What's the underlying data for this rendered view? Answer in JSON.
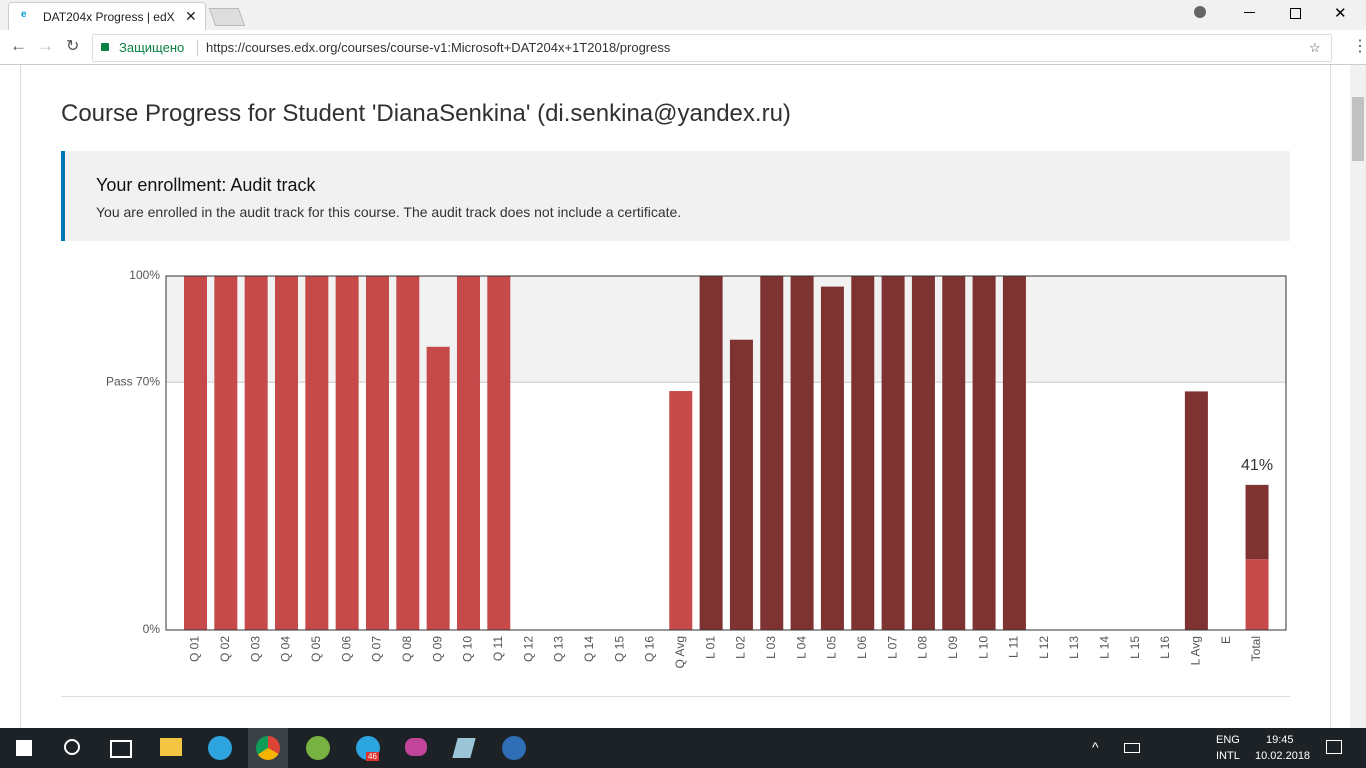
{
  "browser": {
    "tab_title": "DAT204x Progress | edX",
    "secure_label": "Защищено",
    "url": "https://courses.edx.org/courses/course-v1:Microsoft+DAT204x+1T2018/progress"
  },
  "page": {
    "title": "Course Progress for Student 'DianaSenkina' (di.senkina@yandex.ru)",
    "enrollment_title": "Your enrollment: Audit track",
    "enrollment_text": "You are enrolled in the audit track for this course. The audit track does not include a certificate."
  },
  "chart_data": {
    "type": "bar",
    "categories": [
      "Q 01",
      "Q 02",
      "Q 03",
      "Q 04",
      "Q 05",
      "Q 06",
      "Q 07",
      "Q 08",
      "Q 09",
      "Q 10",
      "Q 11",
      "Q 12",
      "Q 13",
      "Q 14",
      "Q 15",
      "Q 16",
      "Q Avg",
      "L 01",
      "L 02",
      "L 03",
      "L 04",
      "L 05",
      "L 06",
      "L 07",
      "L 08",
      "L 09",
      "L 10",
      "L 11",
      "L 12",
      "L 13",
      "L 14",
      "L 15",
      "L 16",
      "L Avg",
      "E",
      "Total"
    ],
    "series": [
      {
        "color": "#c64a4a",
        "values": [
          100,
          100,
          100,
          100,
          100,
          100,
          100,
          100,
          80,
          100,
          100,
          0,
          0,
          0,
          0,
          0,
          67.5,
          null,
          null,
          null,
          null,
          null,
          null,
          null,
          null,
          null,
          null,
          null,
          null,
          null,
          null,
          null,
          null,
          null,
          null,
          20
        ]
      },
      {
        "color": "#7f3232",
        "values": [
          null,
          null,
          null,
          null,
          null,
          null,
          null,
          null,
          null,
          null,
          null,
          null,
          null,
          null,
          null,
          null,
          null,
          100,
          82,
          100,
          100,
          97,
          100,
          100,
          100,
          100,
          100,
          100,
          0,
          0,
          0,
          0,
          0,
          67.4,
          null,
          21
        ]
      }
    ],
    "total": {
      "value": 41,
      "label": "41%"
    },
    "ylim": [
      0,
      100
    ],
    "yticks": [
      {
        "value": 0,
        "label": "0%"
      },
      {
        "value": 70,
        "label": "Pass 70%"
      },
      {
        "value": 100,
        "label": "100%"
      }
    ],
    "pass_band_color": "#f2f2f2"
  },
  "taskbar": {
    "badge": "46",
    "lang": "ENG",
    "layout": "INTL",
    "time": "19:45",
    "date": "10.02.2018"
  }
}
